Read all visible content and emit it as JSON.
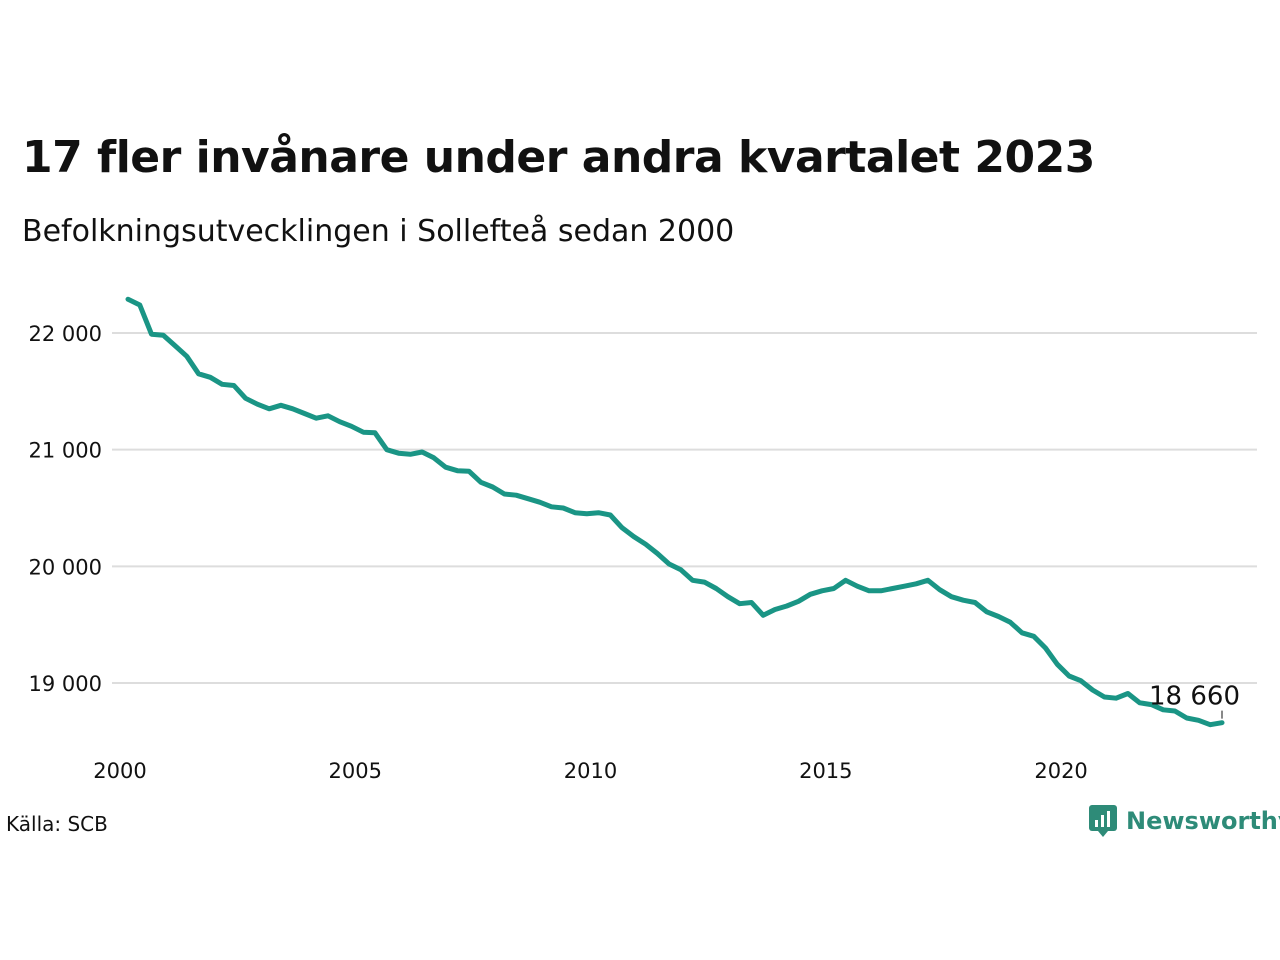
{
  "title": "17 fler invånare under andra kvartalet 2023",
  "subtitle": "Befolkningsutvecklingen i Sollefteå sedan 2000",
  "source": "Källa: SCB",
  "brand": "Newsworthy",
  "colors": {
    "line": "#1a9585",
    "brand": "#2e8b78",
    "grid": "#dddddd"
  },
  "chart_data": {
    "type": "line",
    "title": "17 fler invånare under andra kvartalet 2023",
    "subtitle": "Befolkningsutvecklingen i Sollefteå sedan 2000",
    "xlabel": "",
    "ylabel": "",
    "xlim": [
      2000,
      2024.1
    ],
    "ylim": [
      18500,
      22400
    ],
    "y_ticks": [
      19000,
      20000,
      21000,
      22000
    ],
    "y_tick_labels": [
      "19 000",
      "20 000",
      "21 000",
      "22 000"
    ],
    "x_ticks": [
      2000,
      2005,
      2010,
      2015,
      2020
    ],
    "x_tick_labels": [
      "2000",
      "2005",
      "2010",
      "2015",
      "2020"
    ],
    "grid": "horizontal",
    "end_label": "18 660",
    "series": [
      {
        "x": [
          2000.0,
          2000.25,
          2000.5,
          2000.75,
          2001.0,
          2001.25,
          2001.5,
          2001.75,
          2002.0,
          2002.25,
          2002.5,
          2002.75,
          2003.0,
          2003.25,
          2003.5,
          2003.75,
          2004.0,
          2004.25,
          2004.5,
          2004.75,
          2005.0,
          2005.25,
          2005.5,
          2005.75,
          2006.0,
          2006.25,
          2006.5,
          2006.75,
          2007.0,
          2007.25,
          2007.5,
          2007.75,
          2008.0,
          2008.25,
          2008.5,
          2008.75,
          2009.0,
          2009.25,
          2009.5,
          2009.75,
          2010.0,
          2010.25,
          2010.5,
          2010.75,
          2011.0,
          2011.25,
          2011.5,
          2011.75,
          2012.0,
          2012.25,
          2012.5,
          2012.75,
          2013.0,
          2013.25,
          2013.5,
          2013.75,
          2014.0,
          2014.25,
          2014.5,
          2014.75,
          2015.0,
          2015.25,
          2015.5,
          2015.75,
          2016.0,
          2016.25,
          2016.5,
          2016.75,
          2017.0,
          2017.25,
          2017.5,
          2017.75,
          2018.0,
          2018.25,
          2018.5,
          2018.75,
          2019.0,
          2019.25,
          2019.5,
          2019.75,
          2020.0,
          2020.25,
          2020.5,
          2020.75,
          2021.0,
          2021.25,
          2021.5,
          2021.75,
          2022.0,
          2022.25,
          2022.5,
          2022.75,
          2023.0,
          2023.25
        ],
        "values": [
          22290,
          22240,
          21990,
          21980,
          21890,
          21800,
          21650,
          21620,
          21560,
          21550,
          21440,
          21390,
          21350,
          21380,
          21350,
          21310,
          21270,
          21290,
          21240,
          21200,
          21150,
          21145,
          21000,
          20970,
          20960,
          20980,
          20930,
          20850,
          20820,
          20815,
          20720,
          20680,
          20620,
          20610,
          20580,
          20550,
          20510,
          20500,
          20460,
          20450,
          20460,
          20440,
          20330,
          20255,
          20190,
          20110,
          20020,
          19970,
          19880,
          19865,
          19810,
          19740,
          19680,
          19690,
          19580,
          19630,
          19660,
          19700,
          19760,
          19790,
          19810,
          19880,
          19830,
          19790,
          19790,
          19810,
          19830,
          19850,
          19880,
          19800,
          19740,
          19710,
          19690,
          19610,
          19570,
          19520,
          19430,
          19400,
          19300,
          19160,
          19060,
          19020,
          18940,
          18880,
          18870,
          18910,
          18830,
          18815,
          18770,
          18760,
          18700,
          18680,
          18643,
          18660
        ]
      }
    ]
  }
}
